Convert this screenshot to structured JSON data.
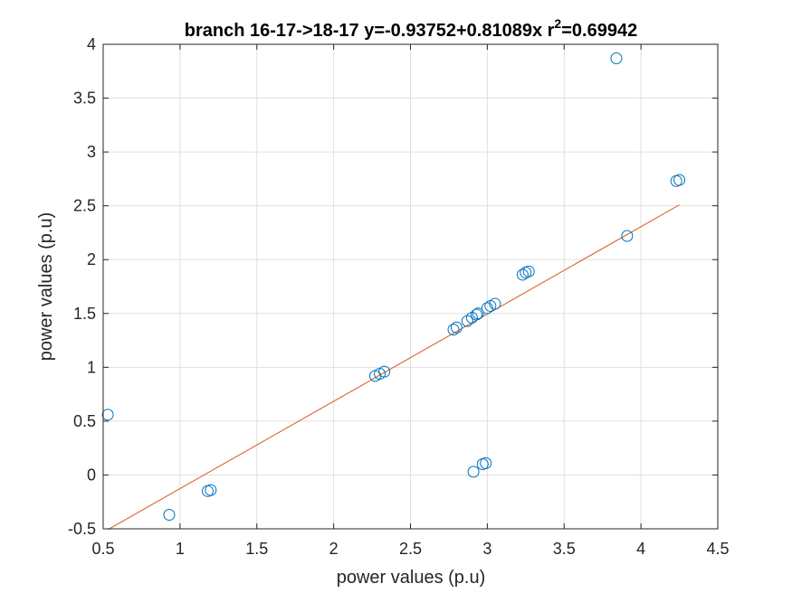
{
  "chart_data": {
    "type": "scatter",
    "title": "branch 16-17->18-17 y=-0.93752+0.81089x r",
    "title_sup": "2",
    "title_tail": "=0.69942",
    "xlabel": "power values (p.u)",
    "ylabel": "power values (p.u)",
    "xlim": [
      0.5,
      4.5
    ],
    "ylim": [
      -0.5,
      4
    ],
    "xticks": [
      0.5,
      1,
      1.5,
      2,
      2.5,
      3,
      3.5,
      4,
      4.5
    ],
    "xtick_labels": [
      "0.5",
      "1",
      "1.5",
      "2",
      "2.5",
      "3",
      "3.5",
      "4",
      "4.5"
    ],
    "yticks": [
      -0.5,
      0,
      0.5,
      1,
      1.5,
      2,
      2.5,
      3,
      3.5,
      4
    ],
    "ytick_labels": [
      "-0.5",
      "0",
      "0.5",
      "1",
      "1.5",
      "2",
      "2.5",
      "3",
      "3.5",
      "4"
    ],
    "grid": true,
    "marker_color": "#0072BD",
    "fit_color": "#D95319",
    "points": [
      [
        0.53,
        0.56
      ],
      [
        0.93,
        -0.37
      ],
      [
        1.18,
        -0.15
      ],
      [
        1.2,
        -0.14
      ],
      [
        2.27,
        0.92
      ],
      [
        2.3,
        0.94
      ],
      [
        2.33,
        0.96
      ],
      [
        2.78,
        1.35
      ],
      [
        2.8,
        1.37
      ],
      [
        2.87,
        1.43
      ],
      [
        2.9,
        1.46
      ],
      [
        2.93,
        1.49
      ],
      [
        2.94,
        1.5
      ],
      [
        3.0,
        1.55
      ],
      [
        3.02,
        1.57
      ],
      [
        3.05,
        1.59
      ],
      [
        2.91,
        0.03
      ],
      [
        2.97,
        0.1
      ],
      [
        2.99,
        0.11
      ],
      [
        3.23,
        1.86
      ],
      [
        3.25,
        1.88
      ],
      [
        3.27,
        1.89
      ],
      [
        3.84,
        3.87
      ],
      [
        3.91,
        2.22
      ],
      [
        4.23,
        2.73
      ],
      [
        4.25,
        2.74
      ]
    ],
    "fit": {
      "intercept": -0.93752,
      "slope": 0.81089,
      "x_range": [
        0.53,
        4.25
      ]
    }
  }
}
